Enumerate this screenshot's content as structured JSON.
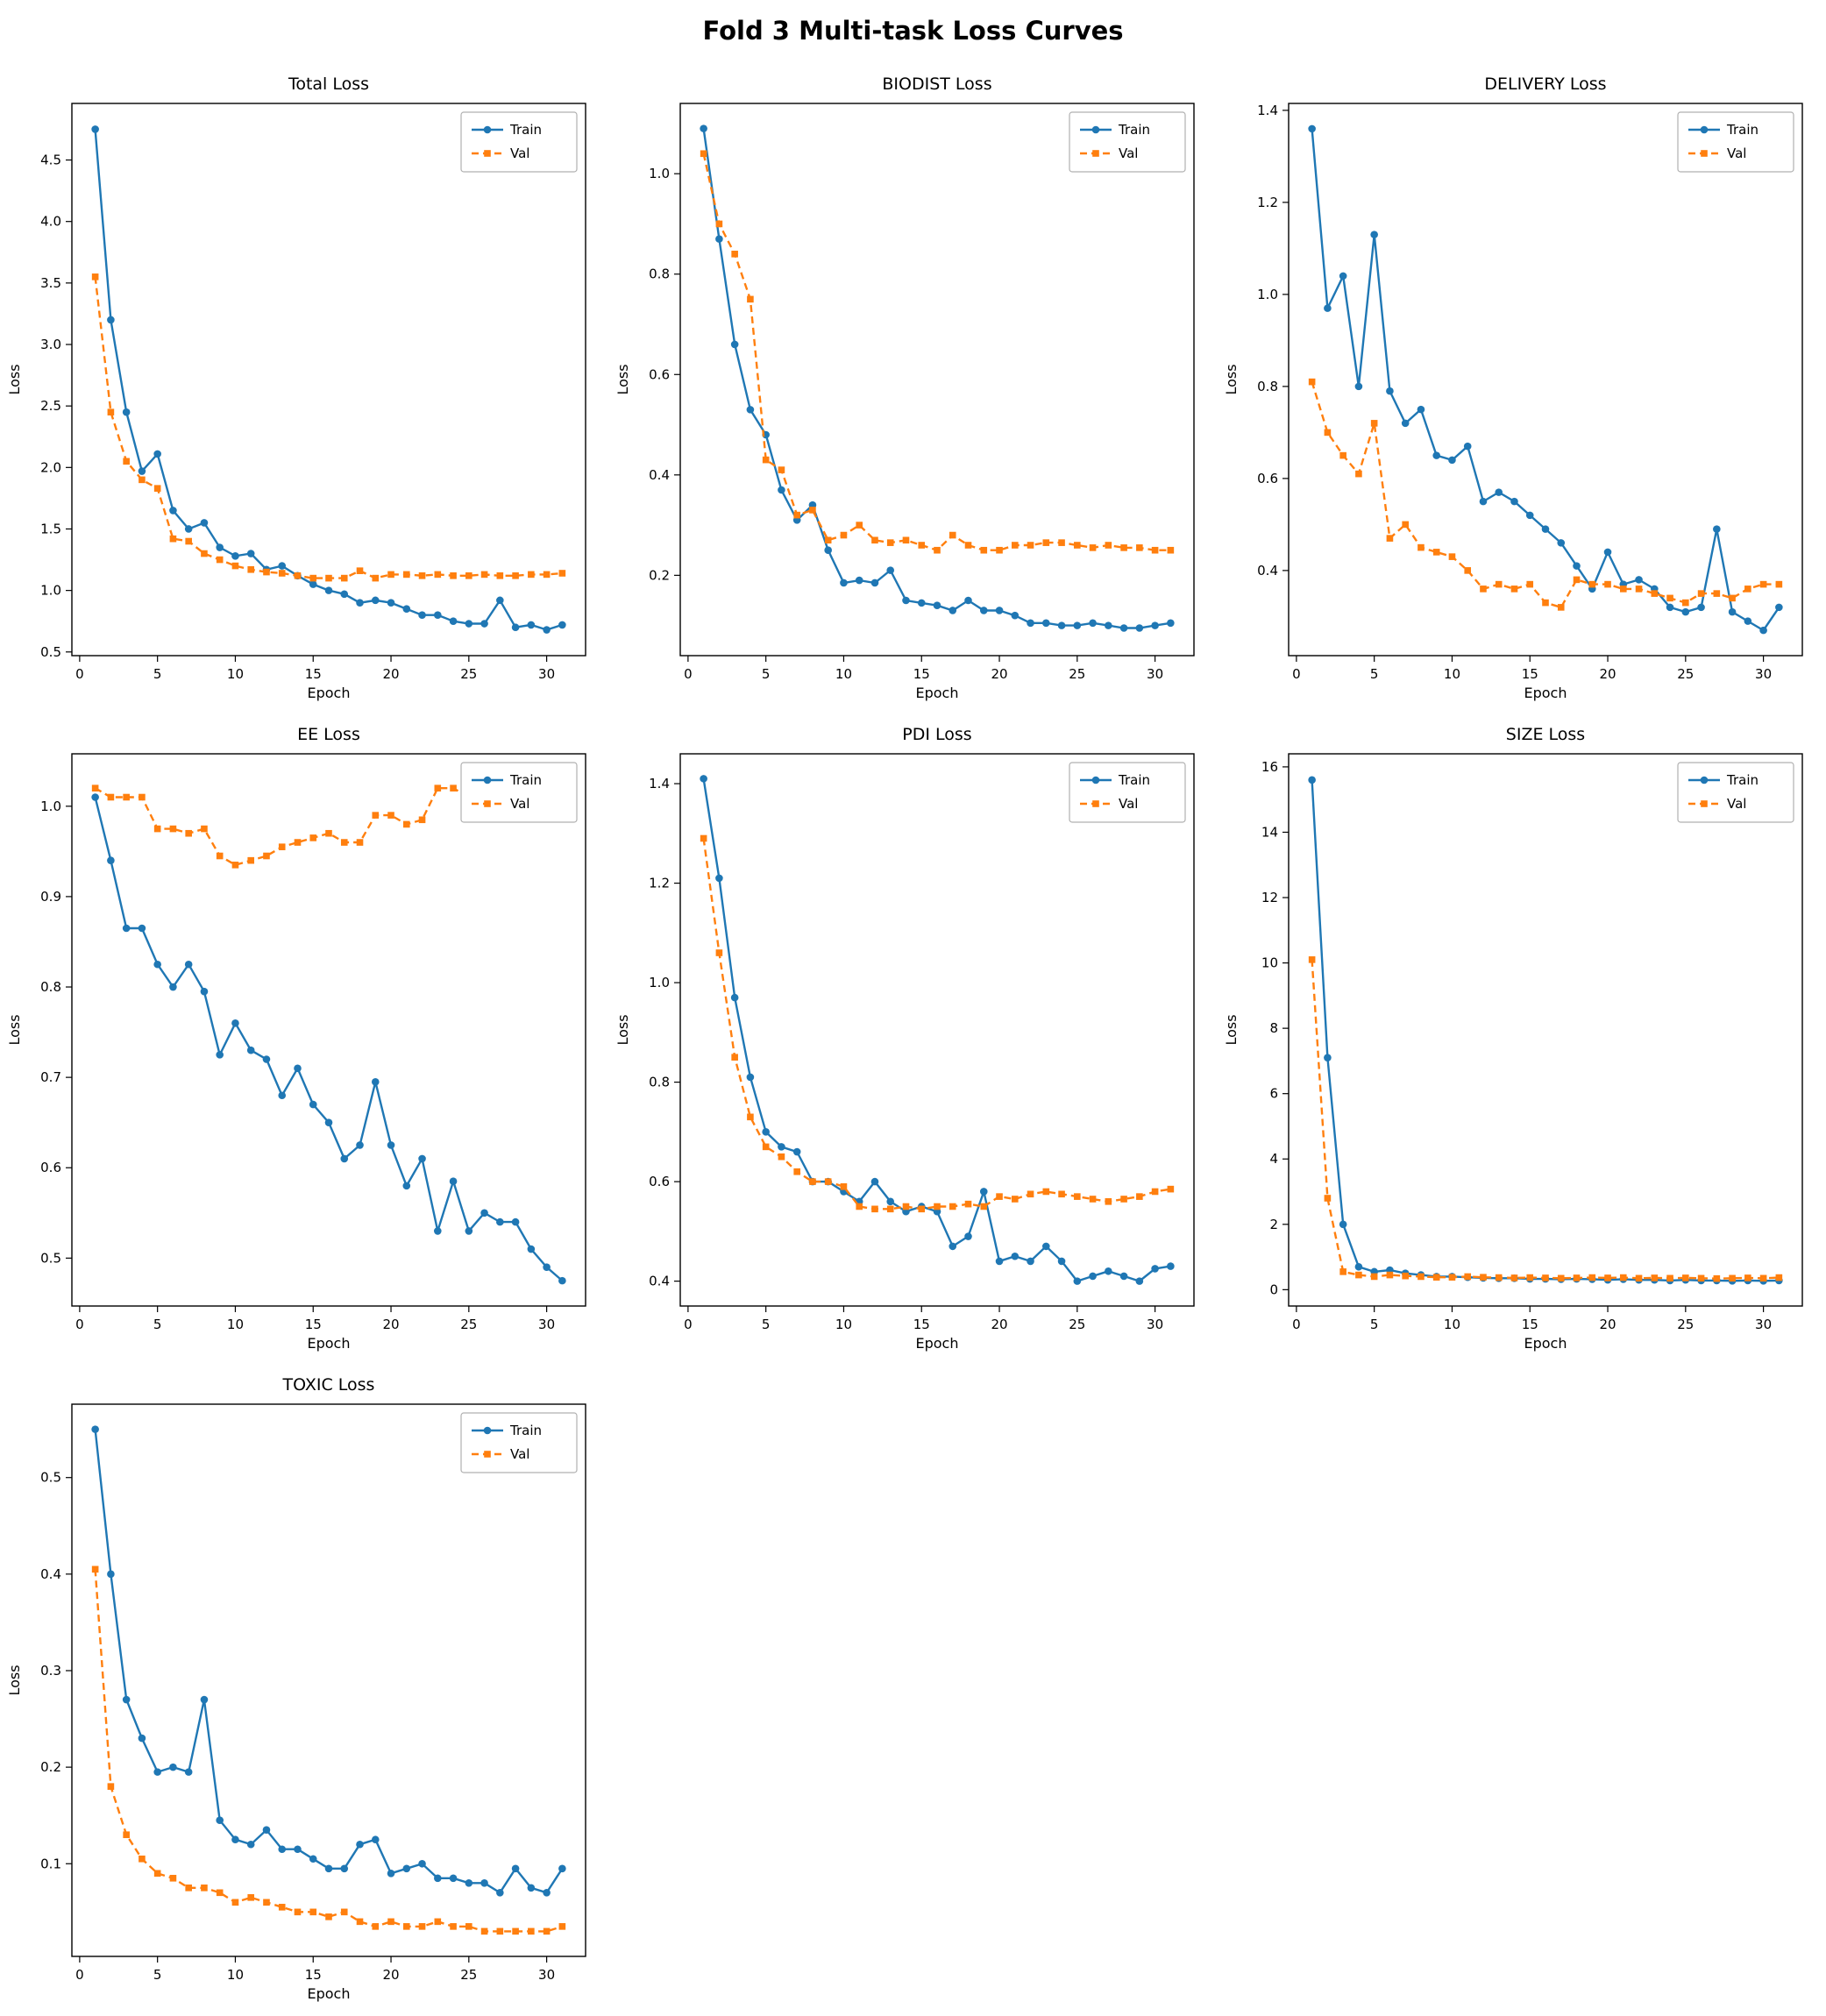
{
  "title": "Fold 3 Multi-task Loss Curves",
  "legend": {
    "train_label": "Train",
    "val_label": "Val"
  },
  "colors": {
    "train": "#1f77b4",
    "val": "#ff7f0e"
  },
  "chart_data": [
    {
      "id": "total-loss",
      "type": "line",
      "title": "Total Loss",
      "xlabel": "Epoch",
      "ylabel": "Loss",
      "xlim": [
        -0.5,
        32.5
      ],
      "ylim": [
        0.47,
        4.96
      ],
      "xticks": [
        0,
        5,
        10,
        15,
        20,
        25,
        30
      ],
      "yticks": [
        0.5,
        1.0,
        1.5,
        2.0,
        2.5,
        3.0,
        3.5,
        4.0,
        4.5
      ],
      "series": [
        {
          "name": "Train",
          "color": "#1f77b4",
          "dash": false,
          "marker": "circle",
          "values": [
            4.75,
            3.2,
            2.45,
            1.97,
            2.11,
            1.65,
            1.5,
            1.55,
            1.35,
            1.28,
            1.3,
            1.17,
            1.2,
            1.12,
            1.05,
            1.0,
            0.97,
            0.9,
            0.92,
            0.9,
            0.85,
            0.8,
            0.8,
            0.75,
            0.73,
            0.73,
            0.92,
            0.7,
            0.72,
            0.68,
            0.72
          ]
        },
        {
          "name": "Val",
          "color": "#ff7f0e",
          "dash": true,
          "marker": "square",
          "values": [
            3.55,
            2.45,
            2.05,
            1.9,
            1.83,
            1.42,
            1.4,
            1.3,
            1.25,
            1.2,
            1.17,
            1.15,
            1.14,
            1.12,
            1.1,
            1.1,
            1.1,
            1.16,
            1.1,
            1.13,
            1.13,
            1.12,
            1.13,
            1.12,
            1.12,
            1.13,
            1.12,
            1.12,
            1.13,
            1.13,
            1.14
          ]
        }
      ]
    },
    {
      "id": "biodist-loss",
      "type": "line",
      "title": "BIODIST Loss",
      "xlabel": "Epoch",
      "ylabel": "Loss",
      "xlim": [
        -0.5,
        32.5
      ],
      "ylim": [
        0.04,
        1.14
      ],
      "xticks": [
        0,
        5,
        10,
        15,
        20,
        25,
        30
      ],
      "yticks": [
        0.2,
        0.4,
        0.6,
        0.8,
        1.0
      ],
      "series": [
        {
          "name": "Train",
          "color": "#1f77b4",
          "dash": false,
          "marker": "circle",
          "values": [
            1.09,
            0.87,
            0.66,
            0.53,
            0.48,
            0.37,
            0.31,
            0.34,
            0.25,
            0.185,
            0.19,
            0.185,
            0.21,
            0.15,
            0.145,
            0.14,
            0.13,
            0.15,
            0.13,
            0.13,
            0.12,
            0.105,
            0.105,
            0.1,
            0.1,
            0.105,
            0.1,
            0.095,
            0.095,
            0.1,
            0.105
          ]
        },
        {
          "name": "Val",
          "color": "#ff7f0e",
          "dash": true,
          "marker": "square",
          "values": [
            1.04,
            0.9,
            0.84,
            0.75,
            0.43,
            0.41,
            0.32,
            0.33,
            0.27,
            0.28,
            0.3,
            0.27,
            0.265,
            0.27,
            0.26,
            0.25,
            0.28,
            0.26,
            0.25,
            0.25,
            0.26,
            0.26,
            0.265,
            0.265,
            0.26,
            0.255,
            0.26,
            0.255,
            0.255,
            0.25,
            0.25
          ]
        }
      ]
    },
    {
      "id": "delivery-loss",
      "type": "line",
      "title": "DELIVERY Loss",
      "xlabel": "Epoch",
      "ylabel": "Loss",
      "xlim": [
        -0.5,
        32.5
      ],
      "ylim": [
        0.215,
        1.415
      ],
      "xticks": [
        0,
        5,
        10,
        15,
        20,
        25,
        30
      ],
      "yticks": [
        0.4,
        0.6,
        0.8,
        1.0,
        1.2,
        1.4
      ],
      "series": [
        {
          "name": "Train",
          "color": "#1f77b4",
          "dash": false,
          "marker": "circle",
          "values": [
            1.36,
            0.97,
            1.04,
            0.8,
            1.13,
            0.79,
            0.72,
            0.75,
            0.65,
            0.64,
            0.67,
            0.55,
            0.57,
            0.55,
            0.52,
            0.49,
            0.46,
            0.41,
            0.36,
            0.44,
            0.37,
            0.38,
            0.36,
            0.32,
            0.31,
            0.32,
            0.49,
            0.31,
            0.29,
            0.27,
            0.32
          ]
        },
        {
          "name": "Val",
          "color": "#ff7f0e",
          "dash": true,
          "marker": "square",
          "values": [
            0.81,
            0.7,
            0.65,
            0.61,
            0.72,
            0.47,
            0.5,
            0.45,
            0.44,
            0.43,
            0.4,
            0.36,
            0.37,
            0.36,
            0.37,
            0.33,
            0.32,
            0.38,
            0.37,
            0.37,
            0.36,
            0.36,
            0.35,
            0.34,
            0.33,
            0.35,
            0.35,
            0.34,
            0.36,
            0.37,
            0.37
          ]
        }
      ]
    },
    {
      "id": "ee-loss",
      "type": "line",
      "title": "EE Loss",
      "xlabel": "Epoch",
      "ylabel": "Loss",
      "xlim": [
        -0.5,
        32.5
      ],
      "ylim": [
        0.447,
        1.058
      ],
      "xticks": [
        0,
        5,
        10,
        15,
        20,
        25,
        30
      ],
      "yticks": [
        0.5,
        0.6,
        0.7,
        0.8,
        0.9,
        1.0
      ],
      "series": [
        {
          "name": "Train",
          "color": "#1f77b4",
          "dash": false,
          "marker": "circle",
          "values": [
            1.01,
            0.94,
            0.865,
            0.865,
            0.825,
            0.8,
            0.825,
            0.795,
            0.725,
            0.76,
            0.73,
            0.72,
            0.68,
            0.71,
            0.67,
            0.65,
            0.61,
            0.625,
            0.695,
            0.625,
            0.58,
            0.61,
            0.53,
            0.585,
            0.53,
            0.55,
            0.54,
            0.54,
            0.51,
            0.49,
            0.475
          ]
        },
        {
          "name": "Val",
          "color": "#ff7f0e",
          "dash": true,
          "marker": "square",
          "values": [
            1.02,
            1.01,
            1.01,
            1.01,
            0.975,
            0.975,
            0.97,
            0.975,
            0.945,
            0.935,
            0.94,
            0.945,
            0.955,
            0.96,
            0.965,
            0.97,
            0.96,
            0.96,
            0.99,
            0.99,
            0.98,
            0.985,
            1.02,
            1.02,
            1.01,
            1.03,
            1.02,
            1.0,
            1.01,
            1.02,
            1.03
          ]
        }
      ]
    },
    {
      "id": "pdi-loss",
      "type": "line",
      "title": "PDI Loss",
      "xlabel": "Epoch",
      "ylabel": "Loss",
      "xlim": [
        -0.5,
        32.5
      ],
      "ylim": [
        0.35,
        1.46
      ],
      "xticks": [
        0,
        5,
        10,
        15,
        20,
        25,
        30
      ],
      "yticks": [
        0.4,
        0.6,
        0.8,
        1.0,
        1.2,
        1.4
      ],
      "series": [
        {
          "name": "Train",
          "color": "#1f77b4",
          "dash": false,
          "marker": "circle",
          "values": [
            1.41,
            1.21,
            0.97,
            0.81,
            0.7,
            0.67,
            0.66,
            0.6,
            0.6,
            0.58,
            0.56,
            0.6,
            0.56,
            0.54,
            0.55,
            0.54,
            0.47,
            0.49,
            0.58,
            0.44,
            0.45,
            0.44,
            0.47,
            0.44,
            0.4,
            0.41,
            0.42,
            0.41,
            0.4,
            0.425,
            0.43
          ]
        },
        {
          "name": "Val",
          "color": "#ff7f0e",
          "dash": true,
          "marker": "square",
          "values": [
            1.29,
            1.06,
            0.85,
            0.73,
            0.67,
            0.65,
            0.62,
            0.6,
            0.6,
            0.59,
            0.55,
            0.545,
            0.545,
            0.55,
            0.545,
            0.55,
            0.55,
            0.555,
            0.55,
            0.57,
            0.565,
            0.575,
            0.58,
            0.575,
            0.57,
            0.565,
            0.56,
            0.565,
            0.57,
            0.58,
            0.585
          ]
        }
      ]
    },
    {
      "id": "size-loss",
      "type": "line",
      "title": "SIZE Loss",
      "xlabel": "Epoch",
      "ylabel": "Loss",
      "xlim": [
        -0.5,
        32.5
      ],
      "ylim": [
        -0.5,
        16.4
      ],
      "xticks": [
        0,
        5,
        10,
        15,
        20,
        25,
        30
      ],
      "yticks": [
        0,
        2,
        4,
        6,
        8,
        10,
        12,
        14,
        16
      ],
      "series": [
        {
          "name": "Train",
          "color": "#1f77b4",
          "dash": false,
          "marker": "circle",
          "values": [
            15.6,
            7.1,
            2.0,
            0.7,
            0.55,
            0.6,
            0.5,
            0.45,
            0.4,
            0.4,
            0.38,
            0.36,
            0.35,
            0.35,
            0.33,
            0.33,
            0.32,
            0.33,
            0.32,
            0.3,
            0.32,
            0.3,
            0.3,
            0.28,
            0.3,
            0.28,
            0.28,
            0.27,
            0.28,
            0.27,
            0.28
          ]
        },
        {
          "name": "Val",
          "color": "#ff7f0e",
          "dash": true,
          "marker": "square",
          "values": [
            10.1,
            2.8,
            0.55,
            0.45,
            0.4,
            0.45,
            0.42,
            0.4,
            0.38,
            0.38,
            0.4,
            0.38,
            0.37,
            0.36,
            0.37,
            0.36,
            0.35,
            0.36,
            0.37,
            0.36,
            0.37,
            0.35,
            0.36,
            0.35,
            0.36,
            0.35,
            0.34,
            0.35,
            0.36,
            0.35,
            0.37
          ]
        }
      ]
    },
    {
      "id": "toxic-loss",
      "type": "line",
      "title": "TOXIC Loss",
      "xlabel": "Epoch",
      "ylabel": "Loss",
      "xlim": [
        -0.5,
        32.5
      ],
      "ylim": [
        0.004,
        0.576
      ],
      "xticks": [
        0,
        5,
        10,
        15,
        20,
        25,
        30
      ],
      "yticks": [
        0.1,
        0.2,
        0.3,
        0.4,
        0.5
      ],
      "series": [
        {
          "name": "Train",
          "color": "#1f77b4",
          "dash": false,
          "marker": "circle",
          "values": [
            0.55,
            0.4,
            0.27,
            0.23,
            0.195,
            0.2,
            0.195,
            0.27,
            0.145,
            0.125,
            0.12,
            0.135,
            0.115,
            0.115,
            0.105,
            0.095,
            0.095,
            0.12,
            0.125,
            0.09,
            0.095,
            0.1,
            0.085,
            0.085,
            0.08,
            0.08,
            0.07,
            0.095,
            0.075,
            0.07,
            0.095
          ]
        },
        {
          "name": "Val",
          "color": "#ff7f0e",
          "dash": true,
          "marker": "square",
          "values": [
            0.405,
            0.18,
            0.13,
            0.105,
            0.09,
            0.085,
            0.075,
            0.075,
            0.07,
            0.06,
            0.065,
            0.06,
            0.055,
            0.05,
            0.05,
            0.045,
            0.05,
            0.04,
            0.035,
            0.04,
            0.035,
            0.035,
            0.04,
            0.035,
            0.035,
            0.03,
            0.03,
            0.03,
            0.03,
            0.03,
            0.035
          ]
        }
      ]
    }
  ]
}
